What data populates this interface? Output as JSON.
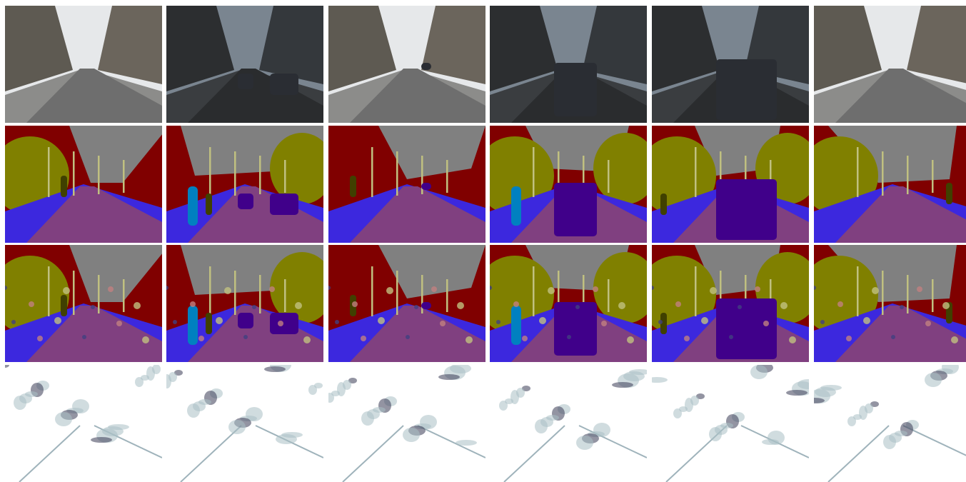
{
  "figure": {
    "rows": [
      {
        "kind": "input-photo"
      },
      {
        "kind": "ground-truth-segmentation"
      },
      {
        "kind": "predicted-segmentation"
      },
      {
        "kind": "uncertainty-map"
      }
    ],
    "columns": 6
  },
  "palette": {
    "sky": "#808080",
    "building": "#800000",
    "tree": "#808000",
    "road": "#804080",
    "sidewalk": "#3c28de",
    "car": "#40008a",
    "pedestrian": "#404000",
    "cyclist": "#0080c0",
    "pole": "#c0c080",
    "sign": "#c08080",
    "fence": "#404080",
    "void": "#000000"
  }
}
